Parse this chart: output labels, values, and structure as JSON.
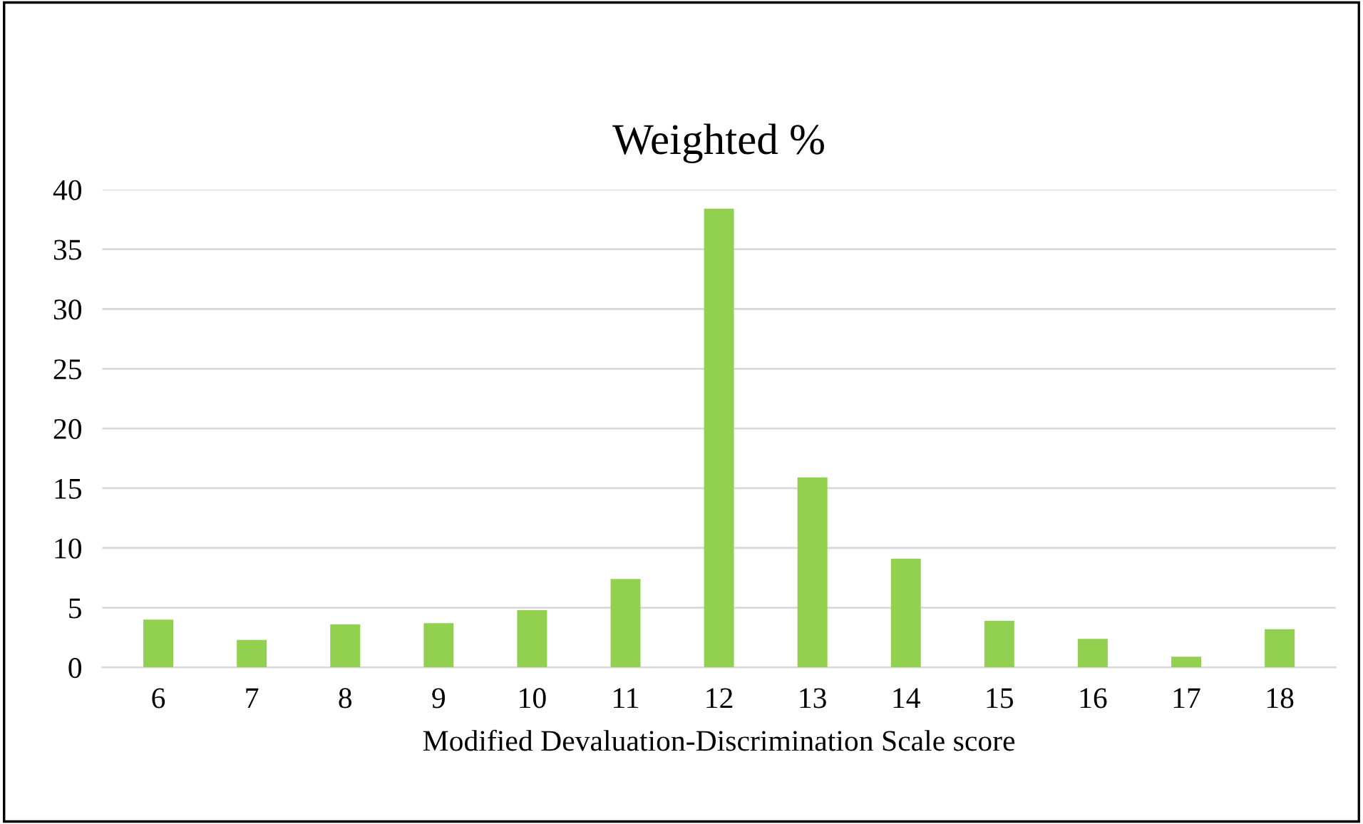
{
  "chart_data": {
    "type": "bar",
    "title": "Weighted %",
    "xlabel": "Modified Devaluation-Discrimination Scale score",
    "categories": [
      "6",
      "7",
      "8",
      "9",
      "10",
      "11",
      "12",
      "13",
      "14",
      "15",
      "16",
      "17",
      "18"
    ],
    "values": [
      4.0,
      2.3,
      3.6,
      3.7,
      4.8,
      7.4,
      38.4,
      15.9,
      9.1,
      3.9,
      2.4,
      0.9,
      3.2
    ],
    "color": "#92d050",
    "ylim": [
      0,
      40
    ],
    "yticks": [
      0,
      5,
      10,
      15,
      20,
      25,
      30,
      35,
      40
    ],
    "grid": "y"
  }
}
